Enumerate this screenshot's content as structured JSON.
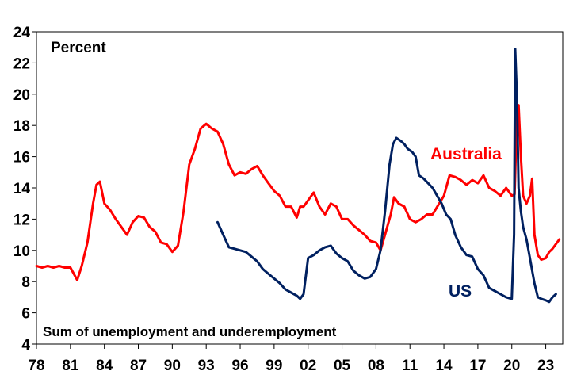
{
  "chart_data": {
    "type": "line",
    "ylabel": "Percent",
    "note": "Sum of unemployment and underemployment",
    "ylim": [
      4,
      24
    ],
    "yticks": [
      4,
      6,
      8,
      10,
      12,
      14,
      16,
      18,
      20,
      22,
      24
    ],
    "xlim": [
      1978.0,
      2024.5
    ],
    "xticks": [
      {
        "label": "78",
        "value": 1978
      },
      {
        "label": "81",
        "value": 1981
      },
      {
        "label": "84",
        "value": 1984
      },
      {
        "label": "87",
        "value": 1987
      },
      {
        "label": "90",
        "value": 1990
      },
      {
        "label": "93",
        "value": 1993
      },
      {
        "label": "96",
        "value": 1996
      },
      {
        "label": "99",
        "value": 1999
      },
      {
        "label": "02",
        "value": 2002
      },
      {
        "label": "05",
        "value": 2005
      },
      {
        "label": "08",
        "value": 2008
      },
      {
        "label": "11",
        "value": 2011
      },
      {
        "label": "14",
        "value": 2014
      },
      {
        "label": "17",
        "value": 2017
      },
      {
        "label": "20",
        "value": 2020
      },
      {
        "label": "23",
        "value": 2023
      }
    ],
    "grid": false,
    "legend": "inline labels",
    "series": [
      {
        "name": "Australia",
        "color": "#ff0000",
        "x": [
          1978.0,
          1978.5,
          1979.0,
          1979.5,
          1980.0,
          1980.5,
          1981.0,
          1981.3,
          1981.6,
          1982.0,
          1982.5,
          1983.0,
          1983.3,
          1983.6,
          1984.0,
          1984.5,
          1985.0,
          1985.5,
          1986.0,
          1986.5,
          1987.0,
          1987.5,
          1988.0,
          1988.5,
          1989.0,
          1989.5,
          1990.0,
          1990.5,
          1991.0,
          1991.5,
          1992.0,
          1992.5,
          1993.0,
          1993.5,
          1994.0,
          1994.5,
          1995.0,
          1995.5,
          1996.0,
          1996.5,
          1997.0,
          1997.5,
          1998.0,
          1998.5,
          1999.0,
          1999.5,
          2000.0,
          2000.5,
          2001.0,
          2001.3,
          2001.6,
          2002.0,
          2002.5,
          2003.0,
          2003.5,
          2004.0,
          2004.5,
          2005.0,
          2005.5,
          2006.0,
          2006.5,
          2007.0,
          2007.5,
          2008.0,
          2008.4,
          2008.8,
          2009.3,
          2009.6,
          2010.0,
          2010.5,
          2011.0,
          2011.5,
          2012.0,
          2012.5,
          2013.0,
          2013.5,
          2014.0,
          2014.5,
          2015.0,
          2015.5,
          2016.0,
          2016.5,
          2017.0,
          2017.5,
          2018.0,
          2018.5,
          2019.0,
          2019.5,
          2020.0,
          2020.25,
          2020.45,
          2020.6,
          2020.8,
          2021.0,
          2021.3,
          2021.6,
          2021.8,
          2022.0,
          2022.3,
          2022.6,
          2023.0,
          2023.3,
          2023.6,
          2023.9,
          2024.2
        ],
        "y": [
          9.0,
          8.9,
          9.0,
          8.9,
          9.0,
          8.9,
          8.9,
          8.5,
          8.1,
          9.0,
          10.5,
          13.0,
          14.2,
          14.4,
          13.0,
          12.6,
          12.0,
          11.5,
          11.0,
          11.8,
          12.2,
          12.1,
          11.5,
          11.2,
          10.5,
          10.4,
          9.9,
          10.3,
          12.5,
          15.5,
          16.5,
          17.8,
          18.1,
          17.8,
          17.6,
          16.8,
          15.5,
          14.8,
          15.0,
          14.9,
          15.2,
          15.4,
          14.8,
          14.3,
          13.8,
          13.5,
          12.8,
          12.8,
          12.1,
          12.8,
          12.8,
          13.2,
          13.7,
          12.8,
          12.3,
          13.0,
          12.8,
          12.0,
          12.0,
          11.6,
          11.3,
          11.0,
          10.6,
          10.5,
          10.0,
          11.0,
          12.3,
          13.4,
          13.0,
          12.8,
          12.0,
          11.8,
          12.0,
          12.3,
          12.3,
          12.9,
          13.5,
          14.8,
          14.7,
          14.5,
          14.2,
          14.5,
          14.3,
          14.8,
          14.0,
          13.8,
          13.5,
          14.0,
          13.5,
          13.6,
          18.8,
          19.3,
          16.0,
          13.5,
          13.0,
          13.5,
          14.6,
          11.0,
          9.7,
          9.4,
          9.5,
          9.9,
          10.1,
          10.4,
          10.7
        ]
      },
      {
        "name": "US",
        "color": "#002060",
        "x": [
          1994.0,
          1994.5,
          1995.0,
          1995.5,
          1996.0,
          1996.5,
          1997.0,
          1997.5,
          1998.0,
          1998.5,
          1999.0,
          1999.5,
          2000.0,
          2000.5,
          2001.0,
          2001.3,
          2001.6,
          2002.0,
          2002.5,
          2003.0,
          2003.5,
          2004.0,
          2004.5,
          2005.0,
          2005.5,
          2006.0,
          2006.5,
          2007.0,
          2007.5,
          2008.0,
          2008.4,
          2008.8,
          2009.2,
          2009.5,
          2009.8,
          2010.2,
          2010.5,
          2010.8,
          2011.2,
          2011.5,
          2011.8,
          2012.2,
          2012.6,
          2013.0,
          2013.4,
          2013.8,
          2014.2,
          2014.6,
          2015.0,
          2015.5,
          2016.0,
          2016.5,
          2017.0,
          2017.5,
          2018.0,
          2018.5,
          2019.0,
          2019.5,
          2020.0,
          2020.2,
          2020.3,
          2020.45,
          2020.6,
          2020.8,
          2021.0,
          2021.3,
          2021.6,
          2022.0,
          2022.3,
          2022.6,
          2023.0,
          2023.3,
          2023.6,
          2023.9
        ],
        "y": [
          11.8,
          11.0,
          10.2,
          10.1,
          10.0,
          9.9,
          9.6,
          9.3,
          8.8,
          8.5,
          8.2,
          7.9,
          7.5,
          7.3,
          7.1,
          6.9,
          7.2,
          9.5,
          9.7,
          10.0,
          10.2,
          10.3,
          9.8,
          9.5,
          9.3,
          8.7,
          8.4,
          8.2,
          8.3,
          8.8,
          10.0,
          12.5,
          15.5,
          16.8,
          17.2,
          17.0,
          16.8,
          16.5,
          16.3,
          16.0,
          14.8,
          14.6,
          14.3,
          14.0,
          13.5,
          13.0,
          12.3,
          12.0,
          11.0,
          10.2,
          9.7,
          9.6,
          8.8,
          8.4,
          7.6,
          7.4,
          7.2,
          7.0,
          6.9,
          11.0,
          22.9,
          19.8,
          14.0,
          12.5,
          11.5,
          10.7,
          9.5,
          7.9,
          7.0,
          6.9,
          6.8,
          6.7,
          7.0,
          7.2
        ]
      }
    ]
  }
}
